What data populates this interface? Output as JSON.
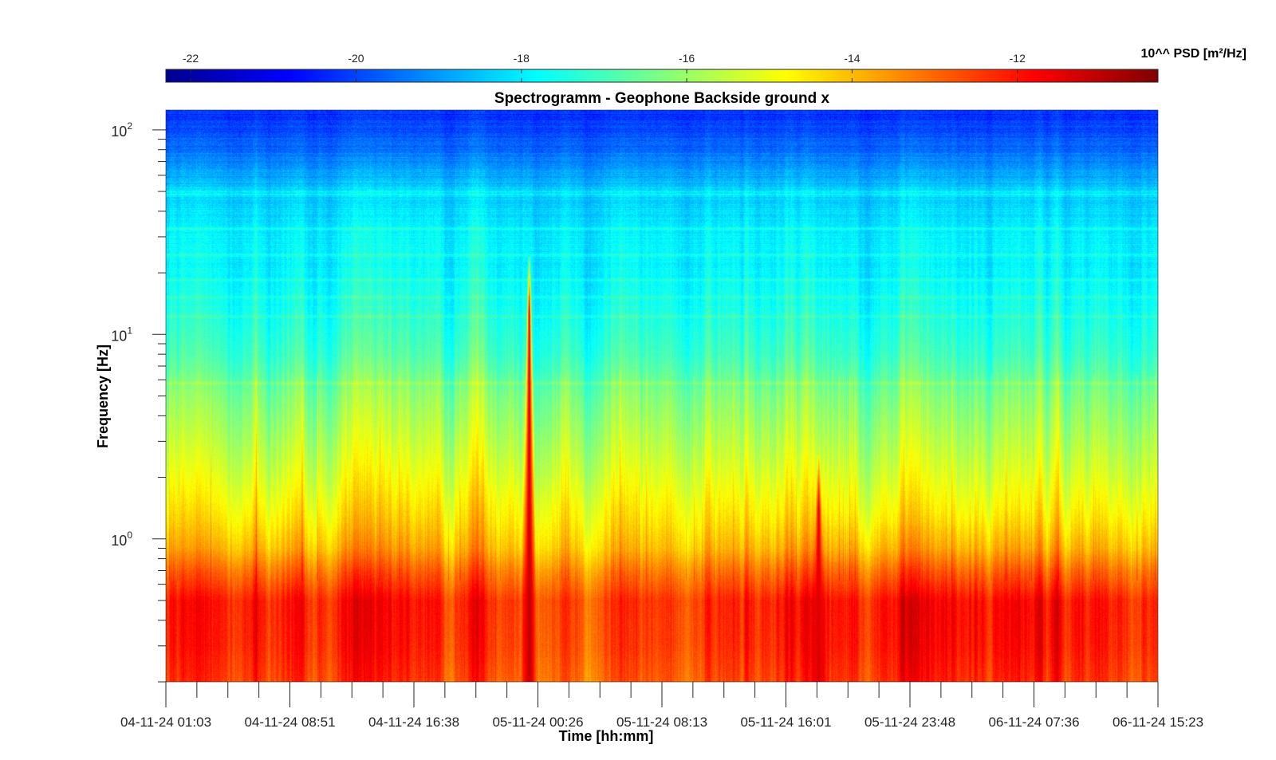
{
  "chart_data": {
    "type": "heatmap",
    "title": "Spectrogramm - Geophone Backside ground x",
    "xlabel": "Time [hh:mm]",
    "ylabel": "Frequency [Hz]",
    "y_scale": "log",
    "ylim": [
      0.2,
      125
    ],
    "y_ticks": [
      {
        "value": 1,
        "base": "10",
        "exp": "0"
      },
      {
        "value": 10,
        "base": "10",
        "exp": "1"
      },
      {
        "value": 100,
        "base": "10",
        "exp": "2"
      }
    ],
    "x_ticks": [
      "04-11-24 01:03",
      "04-11-24 08:51",
      "04-11-24 16:38",
      "05-11-24 00:26",
      "05-11-24 08:13",
      "05-11-24 16:01",
      "05-11-24 23:48",
      "06-11-24 07:36",
      "06-11-24 15:23"
    ],
    "x_minor_per_major": 4,
    "colorbar": {
      "label": "10^^ PSD [m²/Hz]",
      "range": [
        -22.3,
        -10.3
      ],
      "ticks": [
        "-22",
        "-20",
        "-18",
        "-16",
        "-14",
        "-12"
      ],
      "tick_values": [
        -22,
        -20,
        -18,
        -16,
        -14,
        -12
      ],
      "colormap": "jet",
      "placement": "top"
    },
    "description_levels": {
      "note": "log10 PSD vs frequency (baseline profile)",
      "freq_hz": [
        0.2,
        0.3,
        0.5,
        0.7,
        0.9,
        1.2,
        2,
        3,
        5,
        8,
        12,
        20,
        30,
        50,
        80,
        125
      ],
      "log10_psd": [
        -12.6,
        -12.3,
        -12.2,
        -13.1,
        -13.9,
        -14.4,
        -15.1,
        -15.6,
        -16.2,
        -17.0,
        -17.4,
        -17.8,
        -17.9,
        -18.3,
        -19.5,
        -20.3
      ]
    },
    "line_features_hz": [
      5.8,
      12.3,
      15.3,
      18.5,
      24.5,
      33,
      48.5,
      50
    ],
    "events": [
      {
        "time": "04-11-24 23:50",
        "fmin_hz": 0.2,
        "fmax_hz": 24,
        "peak_log10_psd": -11.0
      },
      {
        "time": "05-11-24 18:00",
        "fmin_hz": 0.2,
        "fmax_hz": 2.6,
        "peak_log10_psd": -11.3
      }
    ]
  }
}
